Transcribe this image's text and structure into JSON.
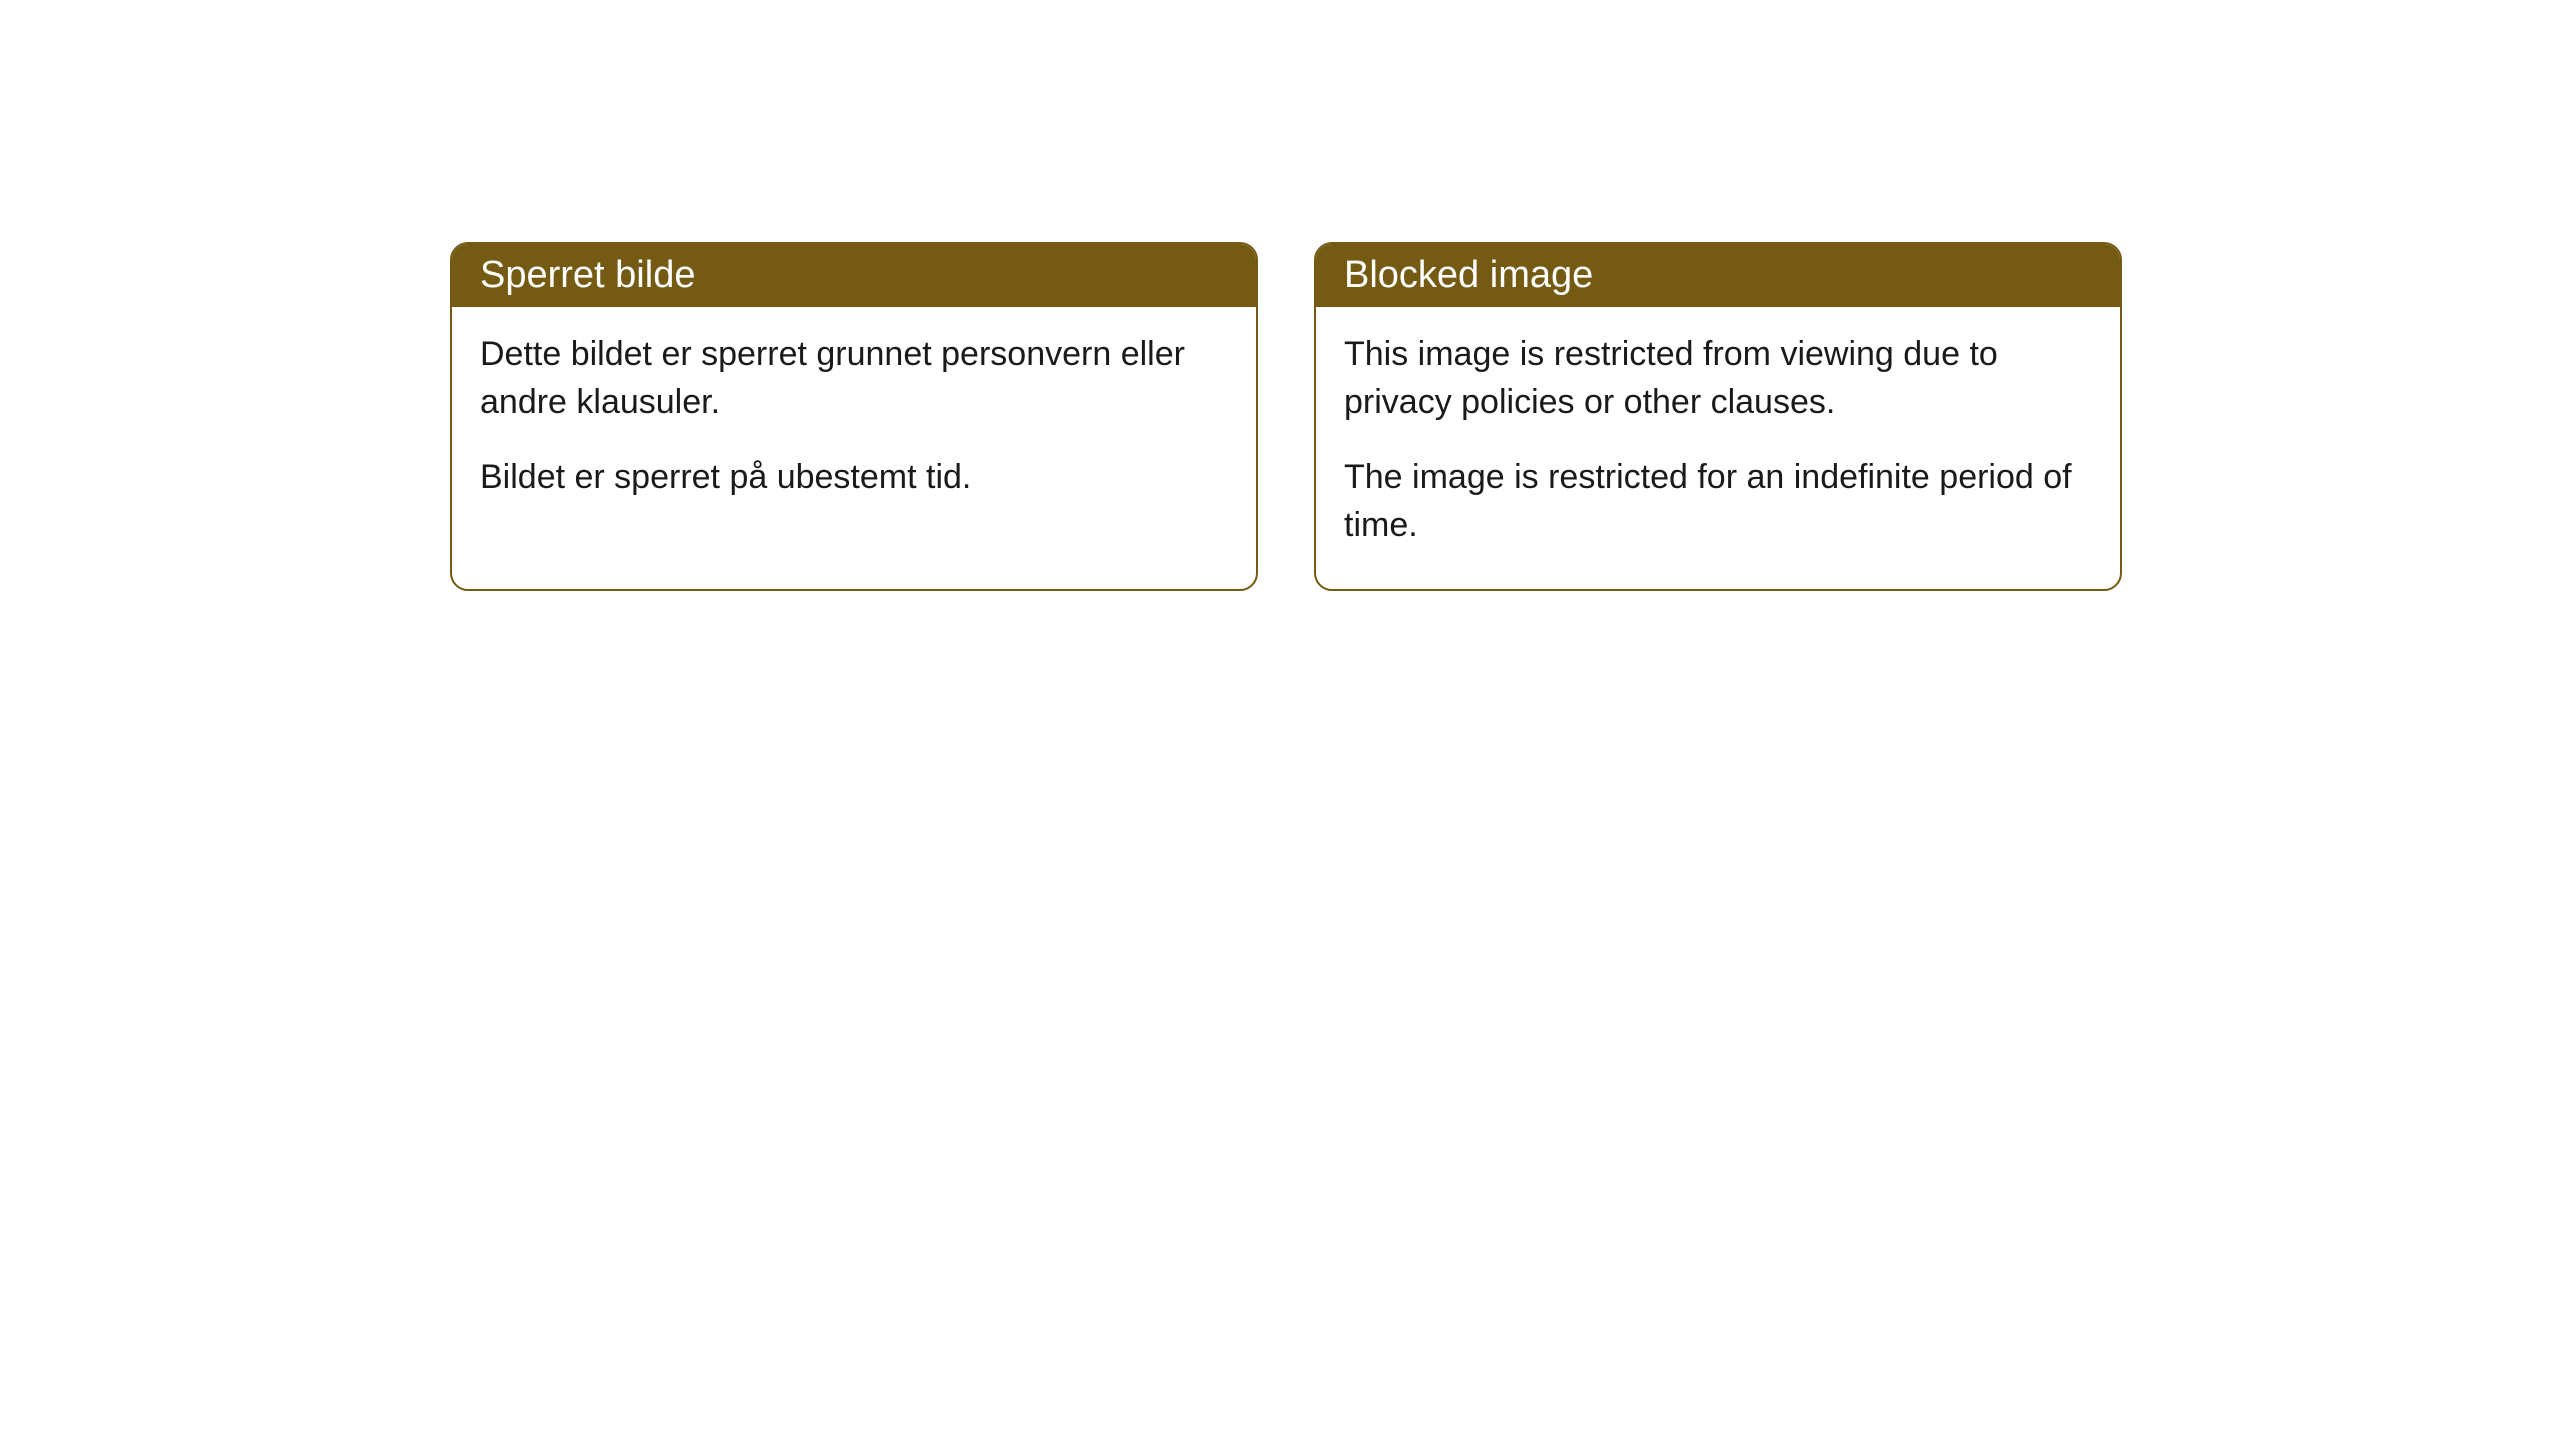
{
  "cards": [
    {
      "header": "Sperret bilde",
      "paragraph1": "Dette bildet er sperret grunnet personvern eller andre klausuler.",
      "paragraph2": "Bildet er sperret på ubestemt tid."
    },
    {
      "header": "Blocked image",
      "paragraph1": "This image is restricted from viewing due to privacy policies or other clauses.",
      "paragraph2": "The image is restricted for an indefinite period of time."
    }
  ],
  "styling": {
    "header_background_color": "#745a13",
    "header_text_color": "#ffffff",
    "border_color": "#745a13",
    "body_text_color": "#1a1a1a",
    "background_color": "#ffffff",
    "border_radius": 18,
    "header_fontsize": 38,
    "body_fontsize": 34
  }
}
